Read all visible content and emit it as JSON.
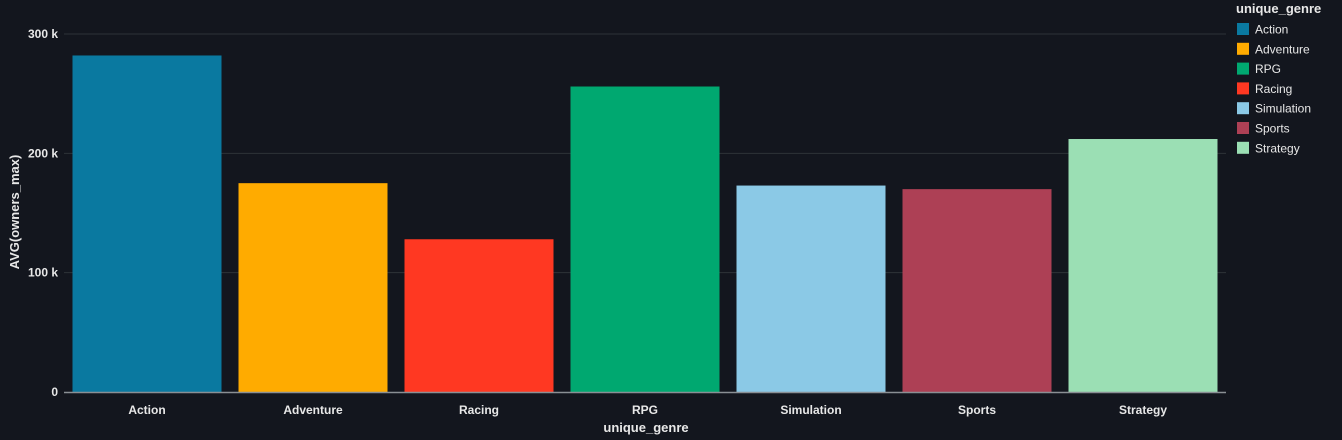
{
  "chart_data": {
    "type": "bar",
    "categories": [
      "Action",
      "Adventure",
      "Racing",
      "RPG",
      "Simulation",
      "Sports",
      "Strategy"
    ],
    "values": [
      282000,
      175000,
      128000,
      256000,
      173000,
      170000,
      212000
    ],
    "colors": [
      "#0a79a0",
      "#ffab00",
      "#ff3822",
      "#00a870",
      "#8bc9e6",
      "#ad4055",
      "#9bdfb4"
    ],
    "xlabel": "unique_genre",
    "ylabel": "AVG(owners_max)",
    "ylim": [
      0,
      300000
    ],
    "yticks": [
      0,
      100000,
      200000,
      300000
    ],
    "ytick_labels": [
      "0",
      "100 k",
      "200 k",
      "300 k"
    ],
    "grid": true,
    "legend": {
      "title": "unique_genre",
      "position": "top-right",
      "entries": [
        "Action",
        "Adventure",
        "RPG",
        "Racing",
        "Simulation",
        "Sports",
        "Strategy"
      ],
      "entry_colors": [
        "#0a79a0",
        "#ffab00",
        "#00a870",
        "#ff3822",
        "#8bc9e6",
        "#ad4055",
        "#9bdfb4"
      ]
    },
    "style": {
      "background": "#13161e",
      "gridline_color": "#2e3338",
      "axis_color": "#8a8f94"
    }
  }
}
